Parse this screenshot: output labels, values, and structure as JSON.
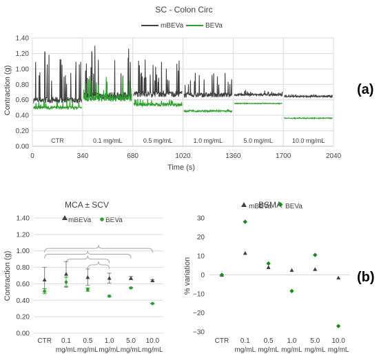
{
  "colors": {
    "mbeva": "#404040",
    "beva": "#2ca02c",
    "beva_dark": "#1a8a1a",
    "grid": "#d9d9d9",
    "axis": "#bfbfbf",
    "bracket": "#a6a6a6"
  },
  "panel_labels": {
    "a": "(a)",
    "b": "(b)"
  },
  "chart_data": [
    {
      "type": "line",
      "title": "SC - Colon Circ",
      "xlabel": "Time (s)",
      "ylabel": "Contraction (g)",
      "legend_position": "top",
      "ylim": [
        0,
        1.4
      ],
      "yticks": [
        "0.00",
        "0.20",
        "0.40",
        "0.60",
        "0.80",
        "1.00",
        "1.20",
        "1.40"
      ],
      "xlim": [
        0,
        2040
      ],
      "xticks": [
        "0",
        "340",
        "680",
        "1020",
        "1360",
        "1700",
        "2040"
      ],
      "grid": true,
      "segment_labels": [
        "CTR",
        "0.1 mg/mL",
        "0.5 mg/mL",
        "1.0 mg/mL",
        "5.0 mg/mL",
        "10.0 mg/mL"
      ],
      "series": [
        {
          "name": "mBEVa",
          "segments": [
            {
              "x0": 0,
              "x1": 340,
              "baseline": 0.58,
              "noise": 0.04,
              "spike_max": 1.22
            },
            {
              "x0": 340,
              "x1": 680,
              "baseline": 0.63,
              "noise": 0.05,
              "spike_max": 1.3
            },
            {
              "x0": 680,
              "x1": 1020,
              "baseline": 0.66,
              "noise": 0.04,
              "spike_max": 1.12
            },
            {
              "x0": 1020,
              "x1": 1360,
              "baseline": 0.65,
              "noise": 0.03,
              "spike_max": 0.95
            },
            {
              "x0": 1360,
              "x1": 1700,
              "baseline": 0.66,
              "noise": 0.015,
              "spike_max": 0.72
            },
            {
              "x0": 1700,
              "x1": 2040,
              "baseline": 0.64,
              "noise": 0.01,
              "spike_max": 0.67
            }
          ]
        },
        {
          "name": "BEVa",
          "segments": [
            {
              "x0": 0,
              "x1": 340,
              "baseline": 0.49,
              "noise": 0.02,
              "spike_max": 0.62
            },
            {
              "x0": 340,
              "x1": 680,
              "baseline": 0.61,
              "noise": 0.05,
              "spike_max": 0.92
            },
            {
              "x0": 680,
              "x1": 1020,
              "baseline": 0.53,
              "noise": 0.02,
              "spike_max": 0.62
            },
            {
              "x0": 1020,
              "x1": 1360,
              "baseline": 0.45,
              "noise": 0.01,
              "spike_max": 0.47
            },
            {
              "x0": 1360,
              "x1": 1700,
              "baseline": 0.55,
              "noise": 0.005,
              "spike_max": 0.56
            },
            {
              "x0": 1700,
              "x1": 2040,
              "baseline": 0.36,
              "noise": 0.005,
              "spike_max": 0.37
            }
          ]
        }
      ]
    },
    {
      "type": "scatter",
      "title": "MCA ± SCV",
      "ylabel": "Contraction (g)",
      "legend_position": "top",
      "ylim": [
        0,
        1.4
      ],
      "yticks": [
        "0.00",
        "0.20",
        "0.40",
        "0.60",
        "0.80",
        "1.00",
        "1.20",
        "1.40"
      ],
      "categories": [
        [
          "CTR"
        ],
        [
          "0.1",
          "mg/mL"
        ],
        [
          "0.5",
          "mg/mL"
        ],
        [
          "1.0",
          "mg/mL"
        ],
        [
          "5.0",
          "mg/mL"
        ],
        [
          "10.0",
          "mg/mL"
        ]
      ],
      "grid": true,
      "series": [
        {
          "name": "mBEVa",
          "marker": "triangle",
          "values": [
            0.65,
            0.72,
            0.68,
            0.67,
            0.67,
            0.64
          ],
          "errors": [
            0.15,
            0.15,
            0.1,
            0.06,
            0.02,
            0.01
          ]
        },
        {
          "name": "BEVa",
          "marker": "circle",
          "values": [
            0.51,
            0.62,
            0.53,
            0.45,
            0.55,
            0.36
          ],
          "errors": [
            0.03,
            0.06,
            0.02,
            0.01,
            0.005,
            0.005
          ]
        }
      ],
      "brackets": [
        {
          "from": 0,
          "to": 5,
          "level": 1.03
        },
        {
          "from": 0,
          "to": 4,
          "level": 0.96
        },
        {
          "from": 1,
          "to": 3,
          "level": 0.9
        },
        {
          "from": 2,
          "to": 3,
          "level": 0.83
        }
      ]
    },
    {
      "type": "scatter",
      "title": "BSMA",
      "ylabel": "% variation",
      "legend_position": "top",
      "ylim": [
        -30,
        30
      ],
      "yticks": [
        "−30",
        "−20",
        "−10",
        "0",
        "10",
        "20",
        "30"
      ],
      "categories": [
        [
          "CTR"
        ],
        [
          "0.1",
          "mg/mL"
        ],
        [
          "0.5",
          "mg/mL"
        ],
        [
          "1.0",
          "mg/mL"
        ],
        [
          "5.0",
          "mg/mL"
        ],
        [
          "10.0",
          "mg/mL"
        ]
      ],
      "grid": false,
      "series": [
        {
          "name": "mBEVa",
          "marker": "triangle",
          "values": [
            0,
            11.5,
            4,
            2.5,
            3,
            -1.5
          ]
        },
        {
          "name": "BEVa",
          "marker": "diamond",
          "values": [
            0,
            28,
            6,
            -8.5,
            10.5,
            -27
          ]
        }
      ]
    }
  ]
}
